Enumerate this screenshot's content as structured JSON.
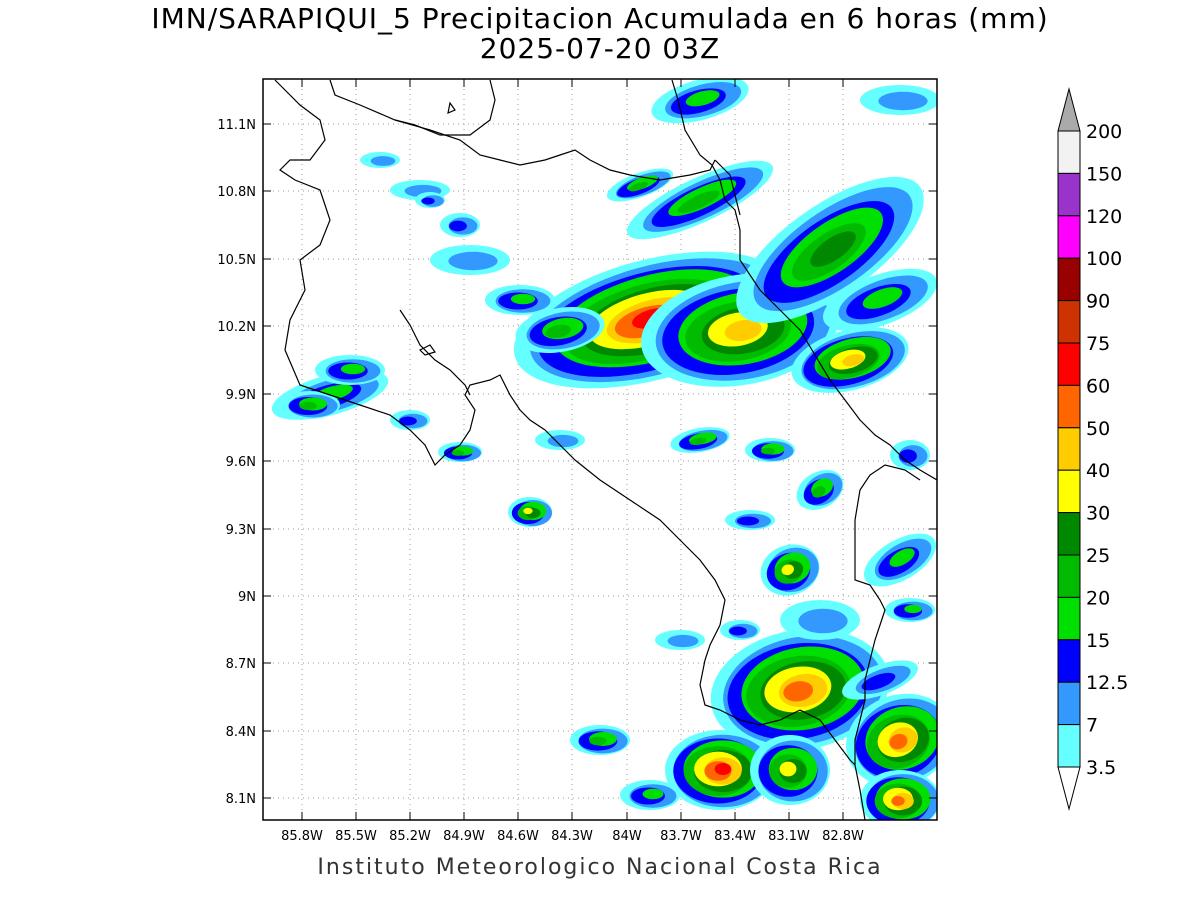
{
  "title": {
    "line1": "IMN/SARAPIQUI_5 Precipitacion Acumulada en 6 horas (mm)",
    "line2": "2025-07-20 03Z"
  },
  "footer": "Instituto Meteorologico Nacional Costa Rica",
  "map": {
    "lat_ticks": [
      "11.1N",
      "10.8N",
      "10.5N",
      "10.2N",
      "9.9N",
      "9.6N",
      "9.3N",
      "9N",
      "8.7N",
      "8.4N",
      "8.1N"
    ],
    "lon_ticks": [
      "85.8W",
      "85.5W",
      "85.2W",
      "84.9W",
      "84.6W",
      "84.3W",
      "84W",
      "83.7W",
      "83.4W",
      "83.1W",
      "82.8W"
    ]
  },
  "colorbar": {
    "labels": [
      "3.5",
      "7",
      "12.5",
      "15",
      "20",
      "25",
      "30",
      "40",
      "50",
      "60",
      "75",
      "90",
      "100",
      "120",
      "150",
      "200"
    ],
    "colors": [
      "#ffffff",
      "#66ffff",
      "#3399ff",
      "#0000ff",
      "#00e000",
      "#00bb00",
      "#008800",
      "#ffff00",
      "#ffcc00",
      "#ff6600",
      "#ff0000",
      "#cc3300",
      "#990000",
      "#ff00ff",
      "#9933cc",
      "#f2f2f2",
      "#aaaaaa"
    ]
  },
  "colors": {
    "c3_5": "#66ffff",
    "c7": "#3399ff",
    "c12_5": "#0000ff",
    "c15": "#00e000",
    "c20": "#00bb00",
    "c25": "#008800",
    "c30": "#ffff00",
    "c40": "#ffcc00",
    "c50": "#ff6600",
    "c60": "#ff0000",
    "c75": "#cc3300",
    "c90": "#990000",
    "c120": "#ff00ff"
  }
}
